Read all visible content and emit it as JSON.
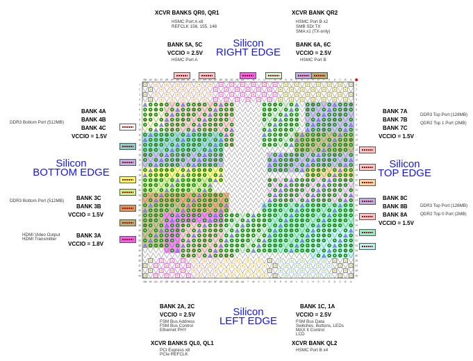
{
  "top": {
    "xcvr_left": {
      "title": "XCVR BANKS QR0, QR1",
      "lines": [
        "HSMC Port A x8",
        "REFCLK 156, 155, 148"
      ]
    },
    "xcvr_right": {
      "title": "XCVR BANK QR2",
      "lines": [
        "HSMC Port B x2",
        "SMB SDI TX",
        "SMA x1 (TX-only)"
      ]
    },
    "bank_left": {
      "title": "BANK 5A, 5C",
      "vccio": "VCCIO = 2.5V",
      "lines": [
        "HSMC Port A"
      ]
    },
    "bank_right": {
      "title": "BANK 6A, 6C",
      "vccio": "VCCIO = 2.5V",
      "lines": [
        "HSMC Port B"
      ]
    },
    "edge": [
      "Silicon",
      "RIGHT EDGE"
    ]
  },
  "left": {
    "group1": {
      "banks": [
        "BANK 4A",
        "BANK 4B",
        "BANK 4C"
      ],
      "vccio": "VCCIO = 1.5V",
      "desc": "DDR3 Bottom Port (512MB)"
    },
    "edge": [
      "Silicon",
      "BOTTOM EDGE"
    ],
    "group2": {
      "banks": [
        "BANK 3C",
        "BANK 3B"
      ],
      "vccio": "VCCIO = 1.5V",
      "desc": "DDR3 Bottom Port (512MB)"
    },
    "group3": {
      "banks": [
        "BANK 3A"
      ],
      "vccio": "VCCIO = 1.8V",
      "desc": [
        "HDMI Video Output",
        "HDMI Transmitter"
      ]
    }
  },
  "right": {
    "group1": {
      "banks": [
        "BANK 7A",
        "BANK 7B",
        "BANK 7C"
      ],
      "vccio": "VCCIO = 1.5V",
      "desc": [
        "DDR3 Top Port (128MB)",
        "QDR2 Top 1 Port (2MB)"
      ]
    },
    "edge": [
      "Silicon",
      "TOP EDGE"
    ],
    "group2": {
      "banks": [
        "BANK 8C",
        "BANK 8B",
        "BANK 8A"
      ],
      "vccio": "VCCIO = 1.5V",
      "desc": [
        "DDR3 Top Port (128MB)",
        "QDR2 Top 0 Port (2MB)"
      ]
    }
  },
  "bottom": {
    "bank_left": {
      "title": "BANK 2A, 2C",
      "vccio": "VCCIO = 2.5V",
      "lines": [
        "FSM Bus Address",
        "FSM Bus Control",
        "Ethernet PHY"
      ]
    },
    "bank_right": {
      "title": "BANK 1C, 1A",
      "vccio": "VCCIO = 2.5V",
      "lines": [
        "FSM Bus Data",
        "Switches, Buttons, LEDs",
        "MAX II Control",
        "LCD"
      ]
    },
    "xcvr_left": {
      "title": "XCVR BANKS QL0, QL1",
      "lines": [
        "PCI Express x8",
        "PCIe REFCLK"
      ]
    },
    "xcvr_right": {
      "title": "XCVR BANK QL2",
      "lines": [
        "HSMC Port B x4"
      ]
    },
    "edge": [
      "Silicon",
      "LEFT EDGE"
    ]
  },
  "grid": {
    "columns": [
      "AW",
      "AV",
      "AU",
      "AT",
      "AR",
      "AP",
      "AN",
      "AM",
      "AL",
      "AK",
      "AJ",
      "AH",
      "AG",
      "AF",
      "AE",
      "AD",
      "AC",
      "AB",
      "AA",
      "Y",
      "W",
      "V",
      "U",
      "T",
      "R",
      "P",
      "N",
      "M",
      "L",
      "K",
      "J",
      "H",
      "G",
      "F",
      "E",
      "D",
      "C",
      "B",
      "A"
    ],
    "rows": 39
  },
  "colors": {
    "edge_label": "#1414f0",
    "io_pin": "#1a8a1a",
    "pink": "#f7c6c6",
    "magenta": "#f060f0",
    "olive": "#b5b070",
    "teal": "#80d0d0",
    "lavender": "#b8b0e8",
    "yellow": "#ffff60",
    "lime": "#c8f080",
    "orange": "#d89858",
    "mint": "#90f0c8",
    "cyan": "#b0f4f4",
    "lightgreen": "#d0f0d0"
  }
}
